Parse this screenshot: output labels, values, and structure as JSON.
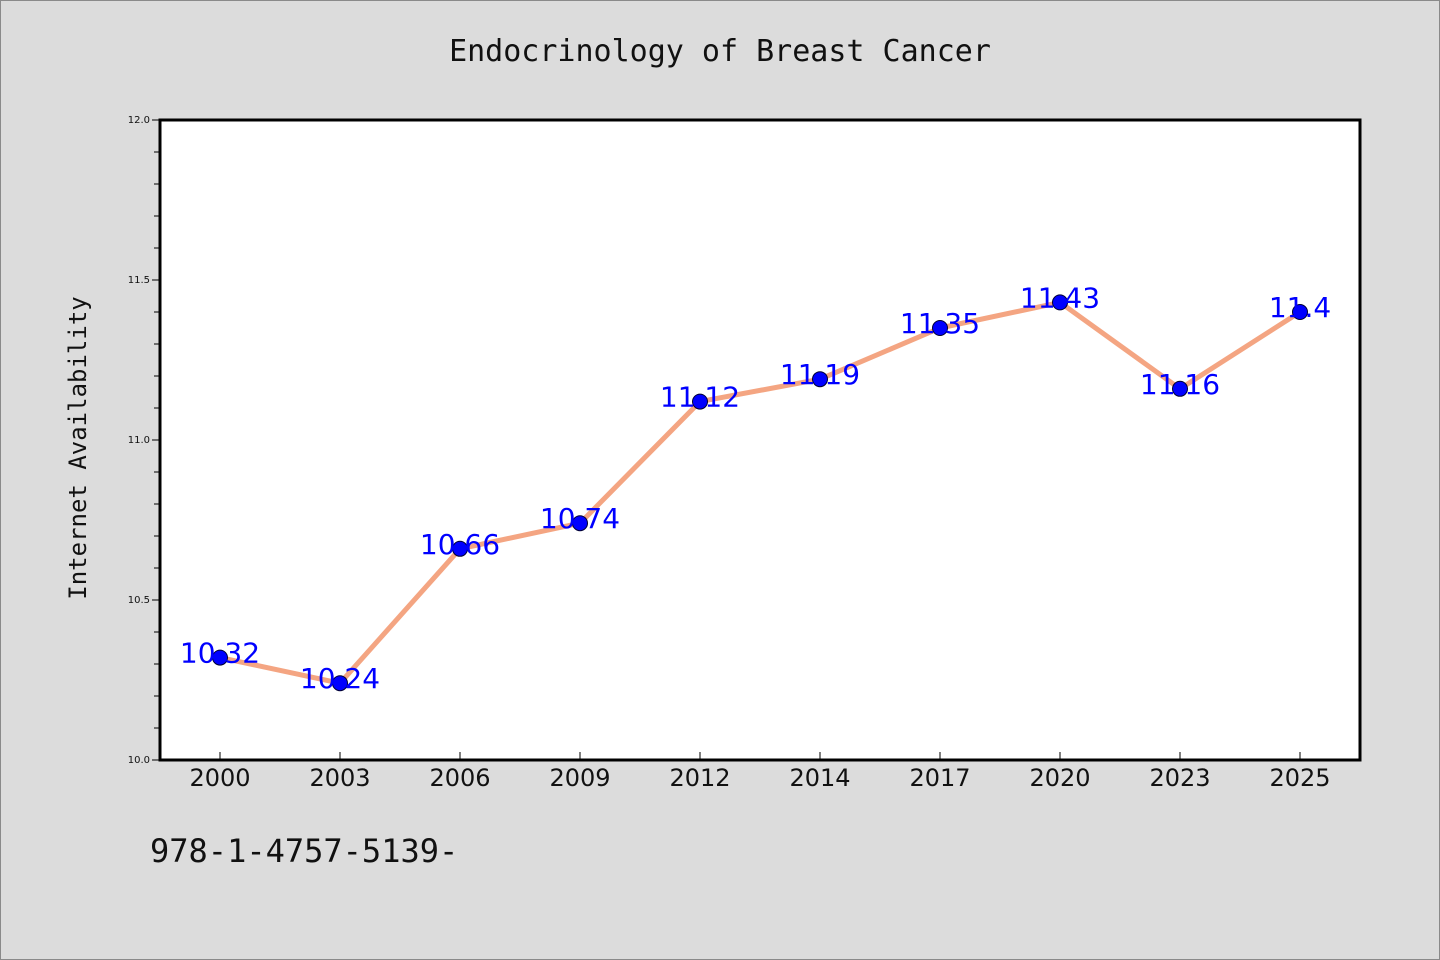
{
  "chart_data": {
    "type": "line",
    "title": "Endocrinology of Breast Cancer",
    "xlabel": "",
    "ylabel": "Internet Availability",
    "categories": [
      "2000",
      "2003",
      "2006",
      "2009",
      "2012",
      "2014",
      "2017",
      "2020",
      "2023",
      "2025"
    ],
    "values": [
      10.32,
      10.24,
      10.66,
      10.74,
      11.12,
      11.19,
      11.35,
      11.43,
      11.16,
      11.4
    ],
    "value_labels": [
      "10.32",
      "10.24",
      "10.66",
      "10.74",
      "11.12",
      "11.19",
      "11.35",
      "11.43",
      "11.16",
      "11.4"
    ],
    "ylim": [
      10.0,
      12.0
    ],
    "y_ticks": [
      "10.0",
      "10.5",
      "11.0",
      "11.5",
      "12.0"
    ],
    "grid": false,
    "line_color": "#f4a582",
    "marker_color": "#0000ff",
    "label_color": "#0000ff"
  },
  "footer": {
    "text": "978-1-4757-5139-"
  }
}
